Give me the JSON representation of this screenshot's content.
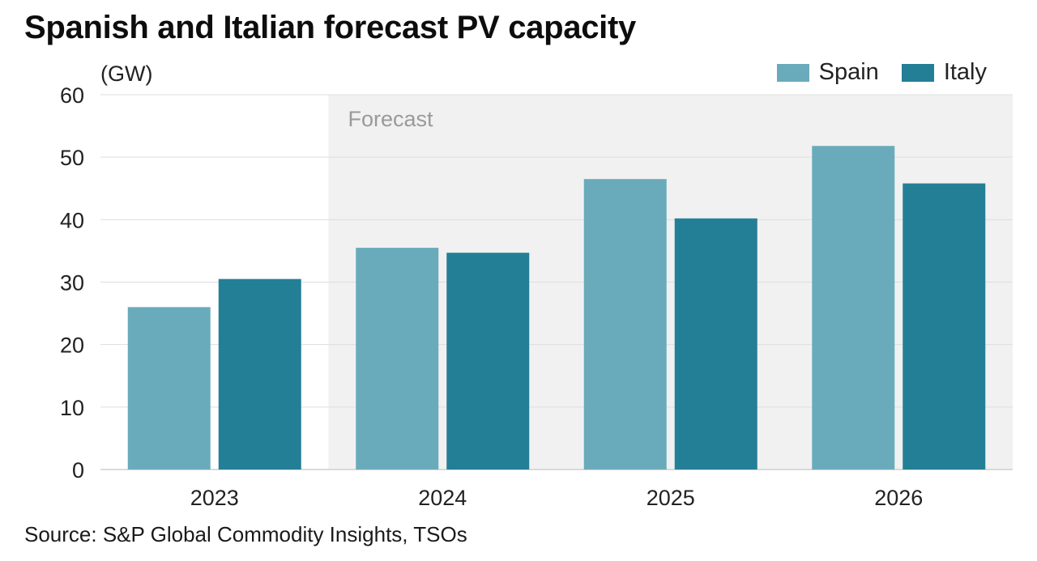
{
  "chart_data": {
    "type": "bar",
    "title": "Spanish and Italian forecast PV capacity",
    "unit_label": "(GW)",
    "categories": [
      "2023",
      "2024",
      "2025",
      "2026"
    ],
    "series": [
      {
        "name": "Spain",
        "color": "#6aabbb",
        "values": [
          26,
          35.5,
          46.5,
          51.8
        ]
      },
      {
        "name": "Italy",
        "color": "#237f96",
        "values": [
          30.5,
          34.7,
          40.2,
          45.8
        ]
      }
    ],
    "ylim": [
      0,
      60
    ],
    "yticks": [
      0,
      10,
      20,
      30,
      40,
      50,
      60
    ],
    "forecast_region": {
      "label": "Forecast",
      "start_category": "2024",
      "color": "#f1f1f1"
    },
    "grid": true,
    "legend_position": "top-right",
    "source": "Source: S&P Global Commodity Insights, TSOs"
  }
}
